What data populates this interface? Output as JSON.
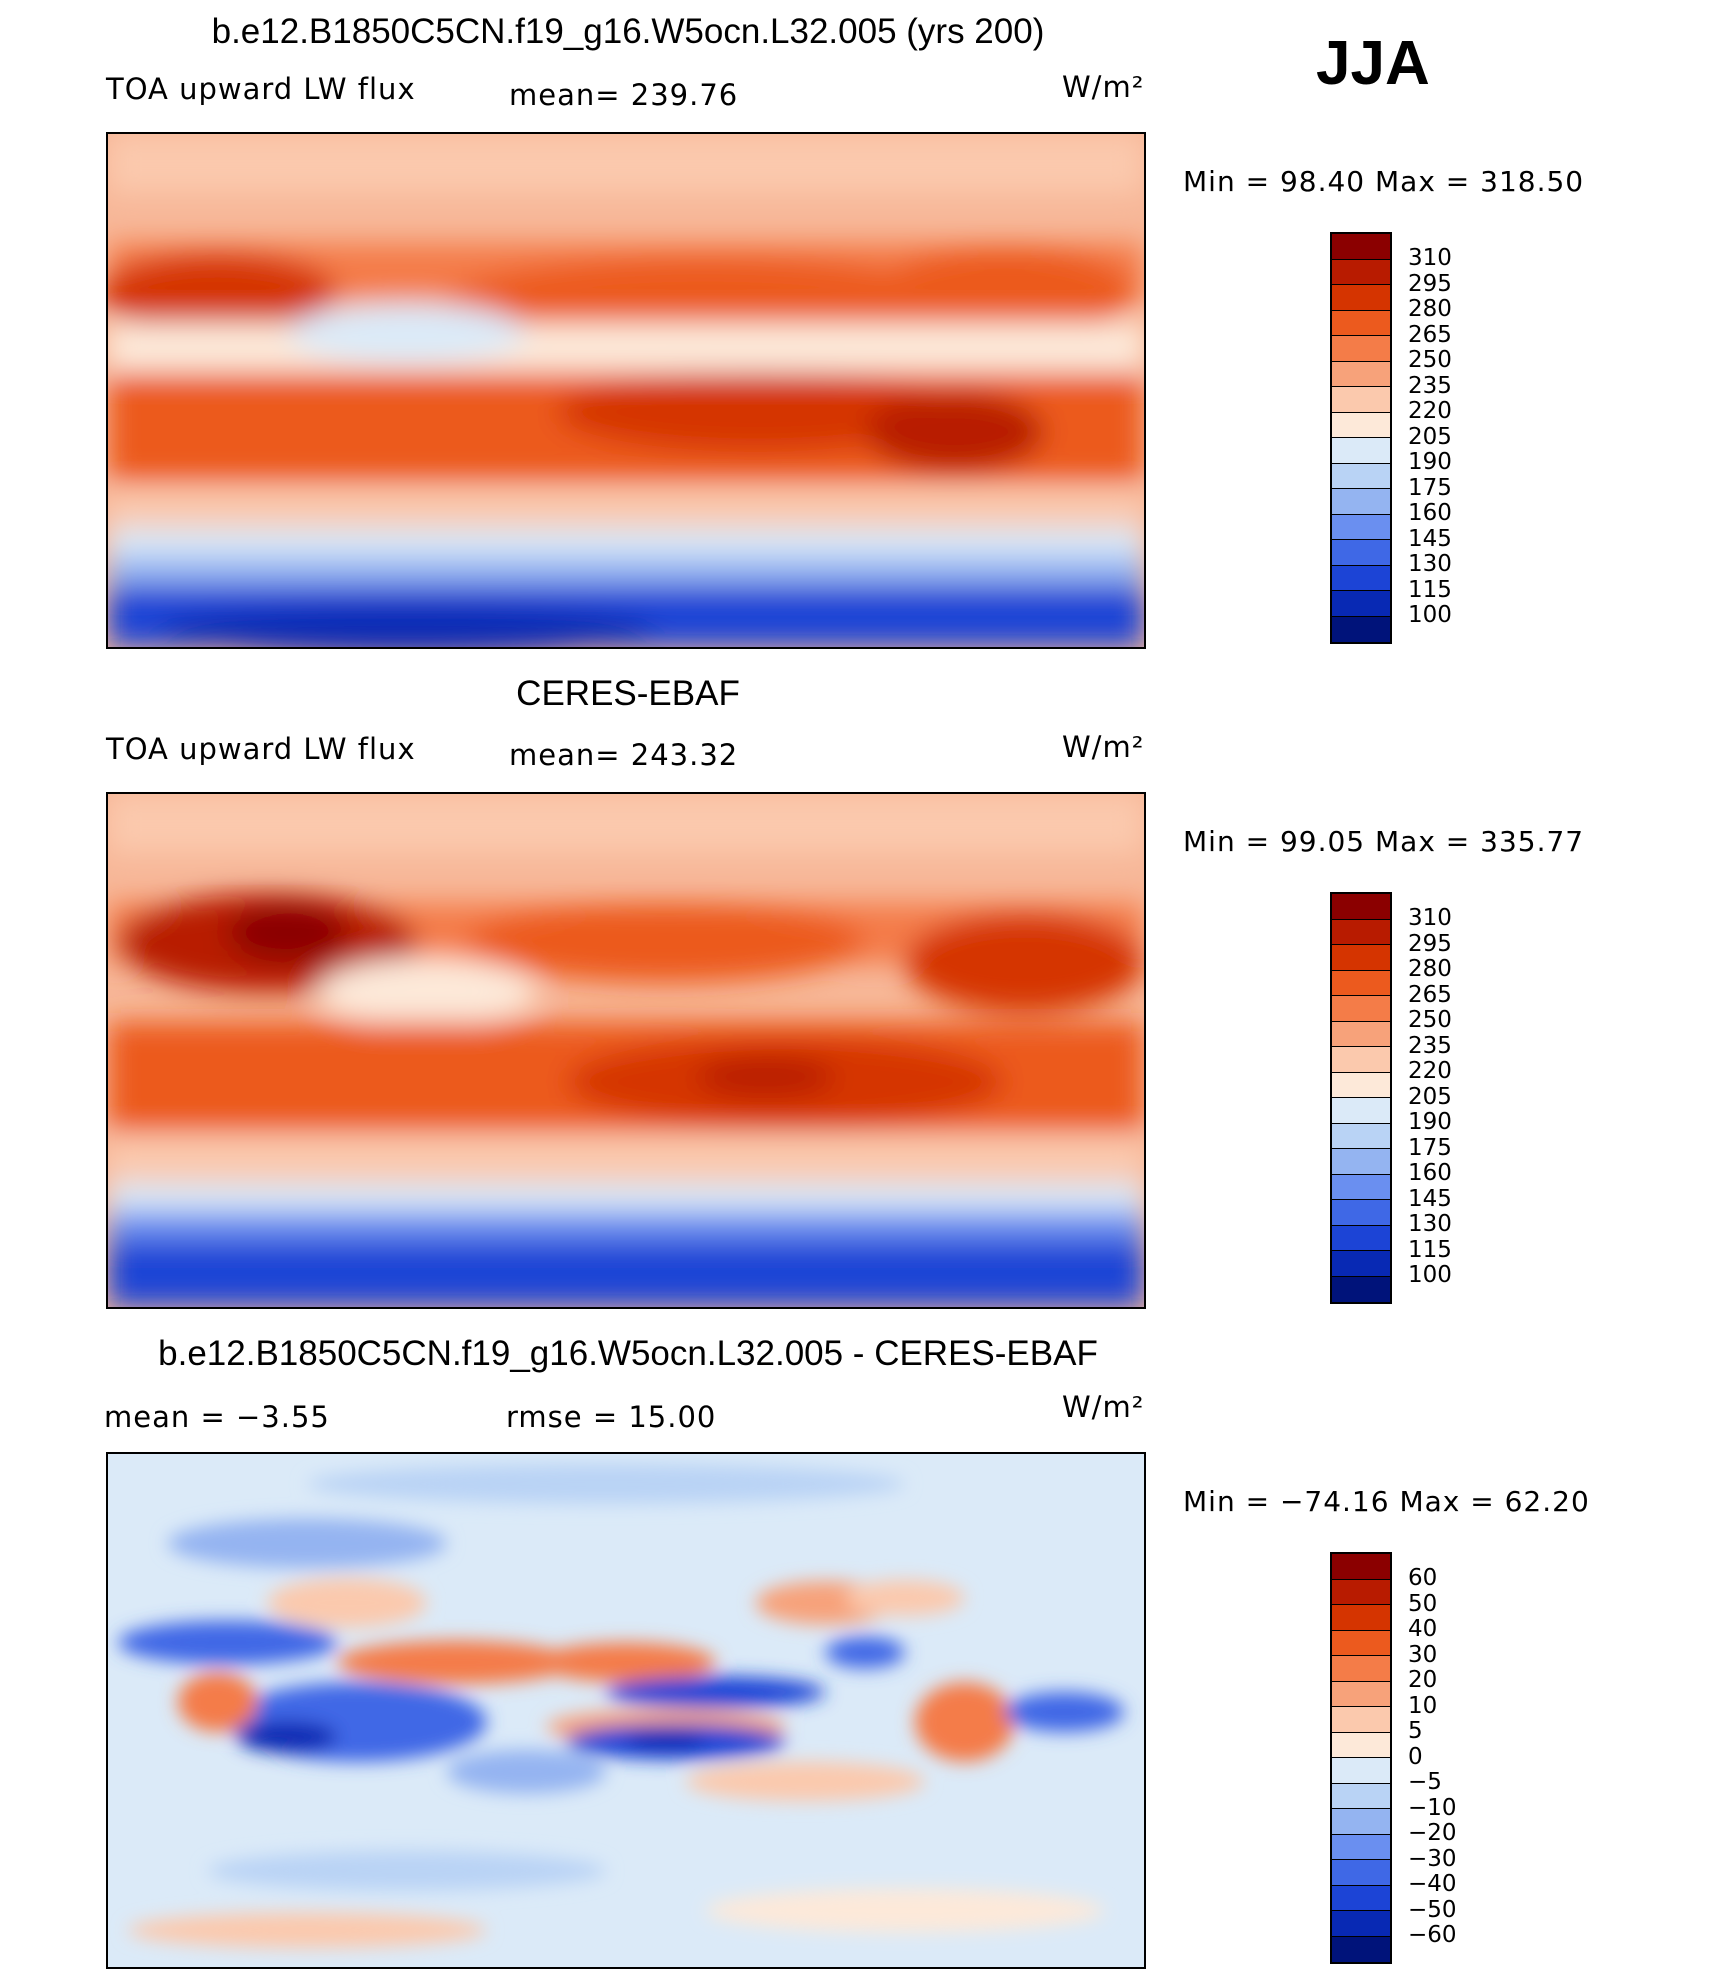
{
  "season": "JJA",
  "panels": [
    {
      "title": "b.e12.B1850C5CN.f19_g16.W5ocn.L32.005 (yrs 200)",
      "left_label": "TOA upward LW flux",
      "mid_label": "mean=  239.76",
      "units": "W/m²",
      "minmax": "Min  =    98.40  Max  =  318.50",
      "ticks": [
        "310",
        "295",
        "280",
        "265",
        "250",
        "235",
        "220",
        "205",
        "190",
        "175",
        "160",
        "145",
        "130",
        "115",
        "100"
      ]
    },
    {
      "title": "CERES-EBAF",
      "left_label": "TOA upward LW flux",
      "mid_label": "mean=  243.32",
      "units": "W/m²",
      "minmax": "Min  =    99.05  Max  =  335.77",
      "ticks": [
        "310",
        "295",
        "280",
        "265",
        "250",
        "235",
        "220",
        "205",
        "190",
        "175",
        "160",
        "145",
        "130",
        "115",
        "100"
      ]
    },
    {
      "title": "b.e12.B1850C5CN.f19_g16.W5ocn.L32.005 - CERES-EBAF",
      "left_label": "mean  =    −3.55",
      "mid_label": "rmse  =    15.00",
      "units": "W/m²",
      "minmax": "Min  =  −74.16  Max  =    62.20",
      "ticks": [
        "60",
        "50",
        "40",
        "30",
        "20",
        "10",
        "5",
        "0",
        "−5",
        "−10",
        "−20",
        "−30",
        "−40",
        "−50",
        "−60"
      ]
    }
  ],
  "colors": {
    "abs_scale": [
      "#8b0000",
      "#b81b00",
      "#d53400",
      "#ec5a1e",
      "#f47c48",
      "#f7a27a",
      "#fbc9ad",
      "#fde9d9",
      "#dbeaf8",
      "#b9d3f5",
      "#94b4f1",
      "#6a8ff0",
      "#3f68e6",
      "#1c44d6",
      "#0829b4",
      "#00137a"
    ],
    "diff_scale": [
      "#8b0000",
      "#b81b00",
      "#d53400",
      "#ec5a1e",
      "#f47c48",
      "#f7a27a",
      "#fbc9ad",
      "#fde9d9",
      "#dbeaf8",
      "#b9d3f5",
      "#94b4f1",
      "#6a8ff0",
      "#3f68e6",
      "#1c44d6",
      "#0829b4",
      "#00137a"
    ]
  }
}
